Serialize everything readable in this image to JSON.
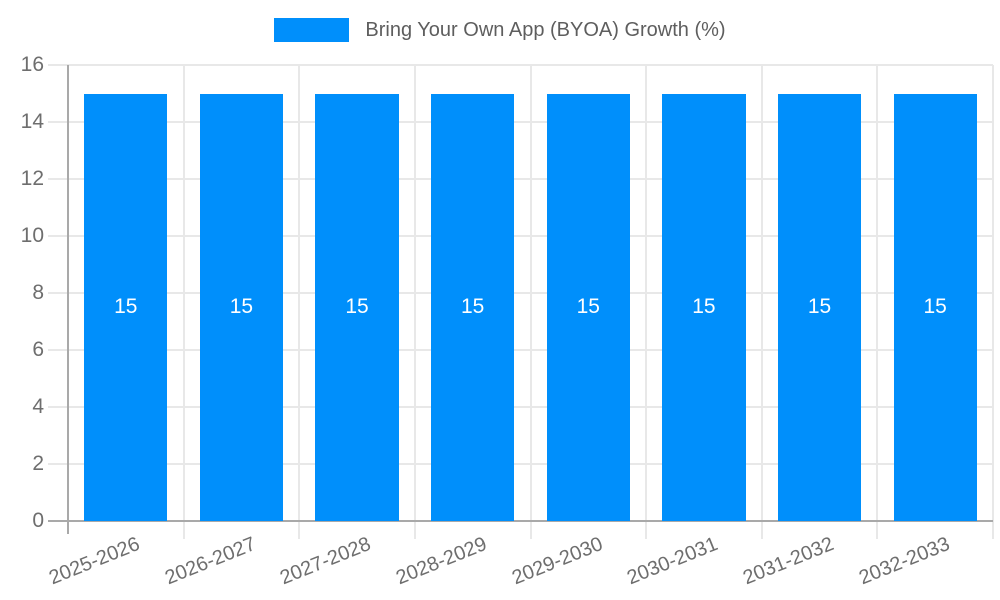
{
  "chart_data": {
    "type": "bar",
    "title": "Bring Your Own App (BYOA) Growth (%)",
    "legend_position": "top",
    "categories": [
      "2025-2026",
      "2026-2027",
      "2027-2028",
      "2028-2029",
      "2029-2030",
      "2030-2031",
      "2031-2032",
      "2032-2033"
    ],
    "series": [
      {
        "name": "Bring Your Own App (BYOA) Growth (%)",
        "values": [
          15,
          15,
          15,
          15,
          15,
          15,
          15,
          15
        ]
      }
    ],
    "bar_value_labels": [
      "15",
      "15",
      "15",
      "15",
      "15",
      "15",
      "15",
      "15"
    ],
    "xlabel": "",
    "ylabel": "",
    "ylim": [
      0,
      16
    ],
    "yticks": [
      0,
      2,
      4,
      6,
      8,
      10,
      12,
      14,
      16
    ],
    "grid": true
  },
  "colors": {
    "bar": "#008FFB",
    "grid": "#e8e8e8",
    "axis": "#a9a9a9",
    "tick_label": "#6e6e6e",
    "legend_text": "#5e5e5e",
    "bar_label": "#ffffff",
    "background": "#ffffff"
  }
}
